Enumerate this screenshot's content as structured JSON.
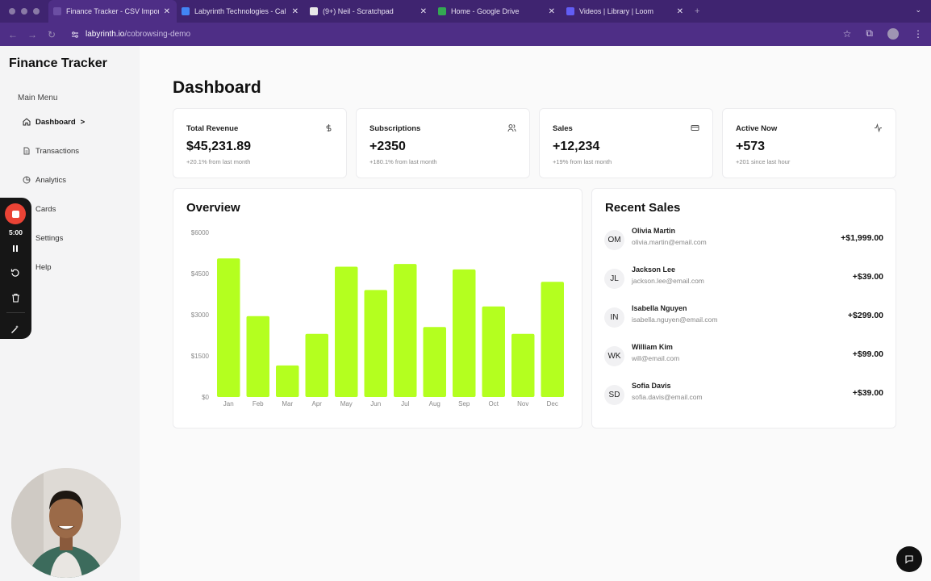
{
  "browser": {
    "tabs": [
      {
        "title": "Finance Tracker - CSV Import",
        "color": "#6b4ea3",
        "active": true
      },
      {
        "title": "Labyrinth Technologies - Cal",
        "color": "#4285f4",
        "active": false
      },
      {
        "title": "(9+) Neil - Scratchpad",
        "color": "#e8e8e8",
        "active": false
      },
      {
        "title": "Home - Google Drive",
        "color": "#34a853",
        "active": false
      },
      {
        "title": "Videos | Library | Loom",
        "color": "#625df5",
        "active": false
      }
    ],
    "url_host": "labyrinth.io",
    "url_path": "/cobrowsing-demo"
  },
  "sidebar": {
    "app_title": "Finance Tracker",
    "menu_label": "Main Menu",
    "items": [
      {
        "label": "Dashboard",
        "suffix": ">",
        "icon": "home-icon"
      },
      {
        "label": "Transactions",
        "icon": "file-icon"
      },
      {
        "label": "Analytics",
        "icon": "pie-chart-icon"
      },
      {
        "label": "Cards",
        "icon": "credit-card-icon"
      },
      {
        "label": "Settings",
        "icon": "gear-icon"
      },
      {
        "label": "Help",
        "icon": "help-icon"
      }
    ]
  },
  "page_title": "Dashboard",
  "stats": [
    {
      "label": "Total Revenue",
      "value": "$45,231.89",
      "sub": "+20.1% from last month",
      "icon": "dollar-icon"
    },
    {
      "label": "Subscriptions",
      "value": "+2350",
      "sub": "+180.1% from last month",
      "icon": "users-icon"
    },
    {
      "label": "Sales",
      "value": "+12,234",
      "sub": "+19% from last month",
      "icon": "credit-card-icon"
    },
    {
      "label": "Active Now",
      "value": "+573",
      "sub": "+201 since last hour",
      "icon": "activity-icon"
    }
  ],
  "overview": {
    "title": "Overview"
  },
  "chart_data": {
    "type": "bar",
    "title": "Overview",
    "categories": [
      "Jan",
      "Feb",
      "Mar",
      "Apr",
      "May",
      "Jun",
      "Jul",
      "Aug",
      "Sep",
      "Oct",
      "Nov",
      "Dec"
    ],
    "values": [
      5050,
      2950,
      1150,
      2300,
      4750,
      3900,
      4850,
      2550,
      4650,
      3300,
      2300,
      4200
    ],
    "ylim": [
      0,
      6000
    ],
    "yticks": [
      "$0",
      "$1500",
      "$3000",
      "$4500",
      "$6000"
    ],
    "ytick_values": [
      0,
      1500,
      3000,
      4500,
      6000
    ],
    "color": "#b4ff1f",
    "xlabel": "",
    "ylabel": ""
  },
  "recent_sales": {
    "title": "Recent Sales",
    "items": [
      {
        "initials": "OM",
        "name": "Olivia Martin",
        "email": "olivia.martin@email.com",
        "amount": "+$1,999.00"
      },
      {
        "initials": "JL",
        "name": "Jackson Lee",
        "email": "jackson.lee@email.com",
        "amount": "+$39.00"
      },
      {
        "initials": "IN",
        "name": "Isabella Nguyen",
        "email": "isabella.nguyen@email.com",
        "amount": "+$299.00"
      },
      {
        "initials": "WK",
        "name": "William Kim",
        "email": "will@email.com",
        "amount": "+$99.00"
      },
      {
        "initials": "SD",
        "name": "Sofia Davis",
        "email": "sofia.davis@email.com",
        "amount": "+$39.00"
      }
    ]
  },
  "recorder": {
    "time": "5:00"
  }
}
